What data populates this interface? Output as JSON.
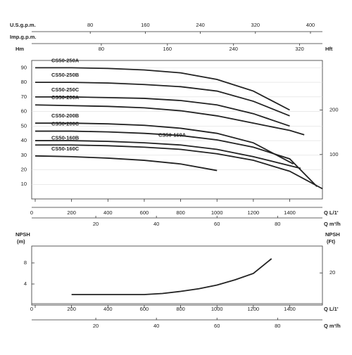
{
  "chart_data": [
    {
      "type": "line",
      "xlabel": "Q L/1'",
      "ylabel": "Hm",
      "y2label": "Hft",
      "grid": true,
      "xlim": [
        0,
        1580
      ],
      "xticks": [
        0,
        200,
        400,
        600,
        800,
        1000,
        1200,
        1400
      ],
      "ylim": [
        0,
        95
      ],
      "yticks": [
        10,
        20,
        30,
        40,
        50,
        60,
        70,
        80,
        90
      ],
      "y2lim": [
        0,
        311.7
      ],
      "y2ticks": [
        100,
        200
      ],
      "top_axes": [
        {
          "label": "U.S.g.p.m.",
          "lim": [
            0,
            417.4
          ],
          "ticks": [
            80,
            160,
            240,
            320,
            400
          ]
        },
        {
          "label": "Imp.g.p.m.",
          "lim": [
            0,
            347.6
          ],
          "ticks": [
            80,
            160,
            240,
            320
          ]
        }
      ],
      "bottom_axis": {
        "label": "Q m³/h",
        "lim": [
          0,
          94.8
        ],
        "ticks": [
          20,
          40,
          60,
          80
        ]
      },
      "series": [
        {
          "name": "CS50-250A",
          "color": "#222222",
          "x": [
            0,
            200,
            400,
            600,
            800,
            1000,
            1200,
            1400
          ],
          "values": [
            90,
            90,
            89.5,
            88.5,
            86.5,
            82,
            74,
            61
          ]
        },
        {
          "name": "CS50-250B",
          "color": "#222222",
          "x": [
            0,
            200,
            400,
            600,
            800,
            1000,
            1200,
            1400
          ],
          "values": [
            80,
            80,
            79.5,
            78.5,
            77,
            74,
            67,
            57
          ]
        },
        {
          "name": "CS50-250C",
          "color": "#222222",
          "x": [
            0,
            200,
            400,
            600,
            800,
            1000,
            1200,
            1400
          ],
          "values": [
            70,
            70,
            69.5,
            69,
            67.5,
            64.5,
            58.5,
            50
          ]
        },
        {
          "name": "CS50-200A",
          "color": "#222222",
          "x": [
            0,
            200,
            400,
            600,
            800,
            1000,
            1200,
            1400,
            1480
          ],
          "values": [
            64.5,
            64,
            63.5,
            62.5,
            60.5,
            57,
            52,
            47,
            44
          ]
        },
        {
          "name": "CS50-200B",
          "color": "#222222",
          "x": [
            0,
            200,
            400,
            600,
            800,
            1000,
            1200,
            1420
          ],
          "values": [
            52,
            52,
            51.5,
            50.5,
            48.5,
            45,
            38.5,
            24
          ]
        },
        {
          "name": "CS50-200C",
          "color": "#222222",
          "x": [
            0,
            200,
            400,
            600,
            800,
            1000,
            1200,
            1400,
            1550
          ],
          "values": [
            46.5,
            46.5,
            46,
            45,
            43.5,
            40.5,
            35.5,
            27.5,
            8.5
          ]
        },
        {
          "name": "CS50-160A",
          "color": "#222222",
          "x": [
            0,
            200,
            400,
            600,
            800,
            1000,
            1200,
            1460
          ],
          "values": [
            40,
            40,
            39.5,
            38.5,
            37,
            34,
            29,
            21
          ]
        },
        {
          "name": "CS50-160B",
          "color": "#222222",
          "x": [
            0,
            200,
            400,
            600,
            800,
            1000,
            1200,
            1400,
            1580
          ],
          "values": [
            37,
            37,
            36.5,
            35.5,
            34,
            31,
            26.5,
            19,
            7
          ]
        },
        {
          "name": "CS50-160C",
          "color": "#222222",
          "x": [
            0,
            200,
            400,
            600,
            800,
            1000
          ],
          "values": [
            29.5,
            29,
            28,
            26.5,
            24,
            19.5
          ]
        }
      ]
    },
    {
      "type": "line",
      "xlabel": "Q L/1'",
      "ylabel": "NPSH",
      "yunit": "(m)",
      "y2label": "NPSH",
      "y2unit": "(Ft)",
      "grid": false,
      "xlim": [
        0,
        1580
      ],
      "xticks": [
        0,
        200,
        400,
        600,
        800,
        1000,
        1200,
        1400
      ],
      "ylim": [
        0,
        11.2
      ],
      "yticks": [
        4,
        8
      ],
      "y2lim": [
        0,
        36.7
      ],
      "y2ticks": [
        20
      ],
      "bottom_axis": {
        "label": "Q m³/h",
        "lim": [
          0,
          94.8
        ],
        "ticks": [
          20,
          40,
          60,
          80
        ]
      },
      "series": [
        {
          "name": null,
          "color": "#222222",
          "x": [
            200,
            400,
            600,
            700,
            800,
            900,
            1000,
            1100,
            1200,
            1300
          ],
          "values": [
            2,
            2,
            2,
            2.2,
            2.6,
            3.1,
            3.8,
            4.8,
            6.0,
            8.8
          ]
        }
      ]
    }
  ]
}
